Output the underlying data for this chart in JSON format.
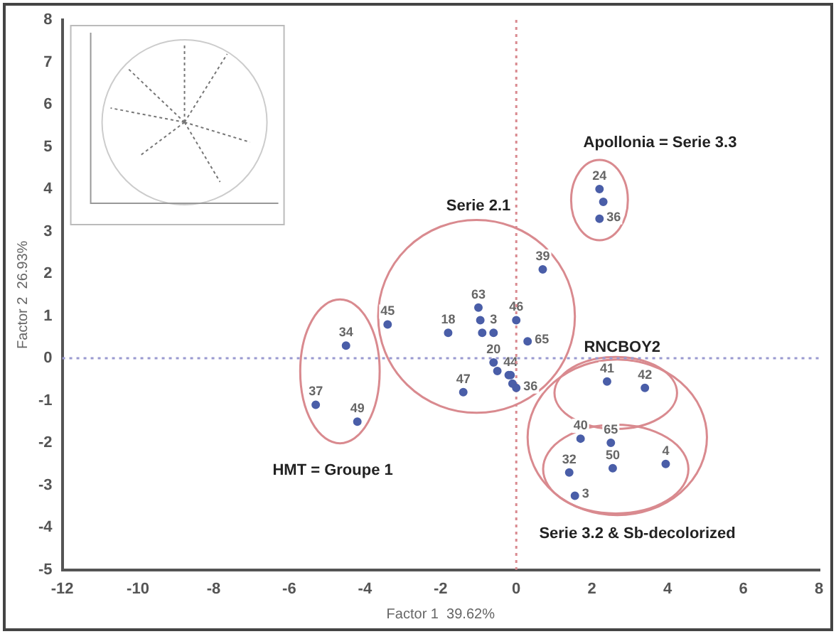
{
  "chart_data": {
    "type": "scatter",
    "xlabel": "Factor 1  39.62%",
    "ylabel": "Factor 2  26.93%",
    "xlim": [
      -12,
      8
    ],
    "xticks": [
      -12,
      -10,
      -8,
      -6,
      -4,
      -2,
      0,
      2,
      4,
      6,
      8
    ],
    "ylim": [
      -5,
      8
    ],
    "yticks": [
      -5,
      -4,
      -3,
      -2,
      -1,
      0,
      1,
      2,
      3,
      4,
      5,
      6,
      7,
      8
    ],
    "grid": false,
    "legend": false,
    "marker": "circle",
    "series": [
      {
        "color": "#4a5ea8",
        "x": [
          -5.3,
          -4.2,
          -4.5,
          -3.4,
          -1.8,
          -1.0,
          -0.95,
          -0.9,
          -0.6,
          0,
          0.3,
          -0.6,
          -0.5,
          -0.2,
          -0.1,
          -0.15,
          0,
          -1.4,
          0.7,
          2.2,
          2.3,
          2.2,
          2.4,
          3.4,
          1.7,
          2.5,
          2.55,
          3.95,
          1.4,
          1.55
        ],
        "values": [
          -1.1,
          -1.5,
          0.3,
          0.8,
          0.6,
          1.2,
          0.9,
          0.6,
          0.6,
          0.9,
          0.4,
          -0.1,
          -0.3,
          -0.4,
          -0.6,
          -0.4,
          -0.7,
          -0.8,
          2.1,
          4.0,
          3.7,
          3.3,
          -0.55,
          -0.7,
          -1.9,
          -2.0,
          -2.6,
          -2.5,
          -2.7,
          -3.25
        ]
      }
    ],
    "ref_lines": [
      {
        "axis": "x",
        "value": 0,
        "color": "#d98a90",
        "line_style": "dotted"
      },
      {
        "axis": "y",
        "value": 0,
        "color": "#9a9ad0",
        "line_style": "dotted"
      }
    ],
    "annotations": [
      "Apollonia = Serie 3.3",
      "Serie 2.1",
      "RNCBOY2",
      "HMT = Groupe 1",
      "Serie 3.2 & Sb-decolorized",
      {
        "text": "37",
        "x": -5.3,
        "y": -1.1
      },
      {
        "text": "49",
        "x": -4.2,
        "y": -1.5
      },
      {
        "text": "34",
        "x": -4.5,
        "y": 0.3
      },
      {
        "text": "45",
        "x": -3.4,
        "y": 0.8
      },
      {
        "text": "18",
        "x": -1.8,
        "y": 0.6
      },
      {
        "text": "63",
        "x": -1.0,
        "y": 1.2
      },
      {
        "text": "3",
        "x": -0.6,
        "y": 0.6
      },
      {
        "text": "46",
        "x": 0,
        "y": 0.9
      },
      {
        "text": "65",
        "x": 0.3,
        "y": 0.4
      },
      {
        "text": "20",
        "x": -0.6,
        "y": -0.1
      },
      {
        "text": "44",
        "x": -0.15,
        "y": -0.4
      },
      {
        "text": "36",
        "x": 0,
        "y": -0.7
      },
      {
        "text": "47",
        "x": -1.4,
        "y": -0.8
      },
      {
        "text": "39",
        "x": 0.7,
        "y": 2.1
      },
      {
        "text": "24",
        "x": 2.2,
        "y": 4.0
      },
      {
        "text": "36",
        "x": 2.2,
        "y": 3.3
      },
      {
        "text": "41",
        "x": 2.4,
        "y": -0.55
      },
      {
        "text": "42",
        "x": 3.4,
        "y": -0.7
      },
      {
        "text": "40",
        "x": 1.7,
        "y": -1.9
      },
      {
        "text": "65",
        "x": 2.5,
        "y": -2.0
      },
      {
        "text": "50",
        "x": 2.55,
        "y": -2.6
      },
      {
        "text": "4",
        "x": 3.95,
        "y": -2.5
      },
      {
        "text": "32",
        "x": 1.4,
        "y": -2.7
      },
      {
        "text": "3",
        "x": 1.55,
        "y": -3.25
      }
    ]
  }
}
